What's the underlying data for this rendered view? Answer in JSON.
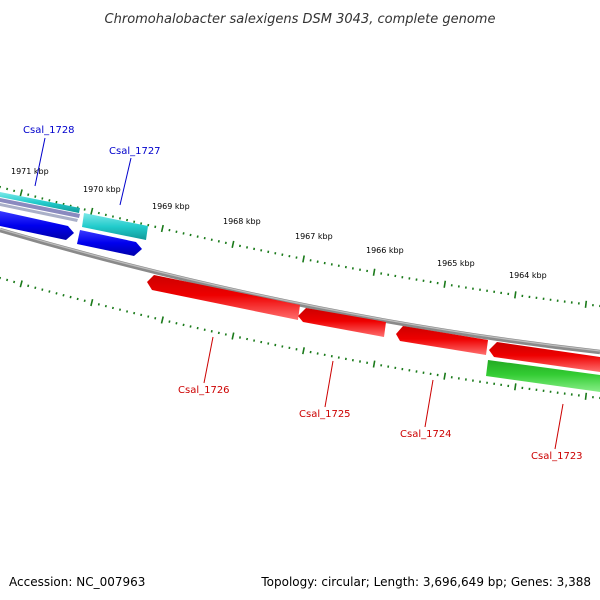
{
  "title": "Chromohalobacter salexigens DSM 3043, complete genome",
  "footer": {
    "accession": "Accession: NC_007963",
    "summary": "Topology: circular; Length: 3,696,649 bp; Genes: 3,388"
  },
  "colors": {
    "backbone": "#808080",
    "tick": "#1a7a1a",
    "label_forward": "#0000cc",
    "label_reverse": "#cc0000",
    "gene_blue": "#0000ee",
    "gene_cyan": "#22cccc",
    "gene_red": "#ee0000",
    "gene_green": "#33cc33"
  },
  "tick_labels": [
    "1971 kbp",
    "1970 kbp",
    "1969 kbp",
    "1968 kbp",
    "1967 kbp",
    "1966 kbp",
    "1965 kbp",
    "1964 kbp"
  ],
  "genes": {
    "forward": [
      "Csal_1728",
      "Csal_1727"
    ],
    "reverse": [
      "Csal_1726",
      "Csal_1725",
      "Csal_1724",
      "Csal_1723"
    ]
  }
}
